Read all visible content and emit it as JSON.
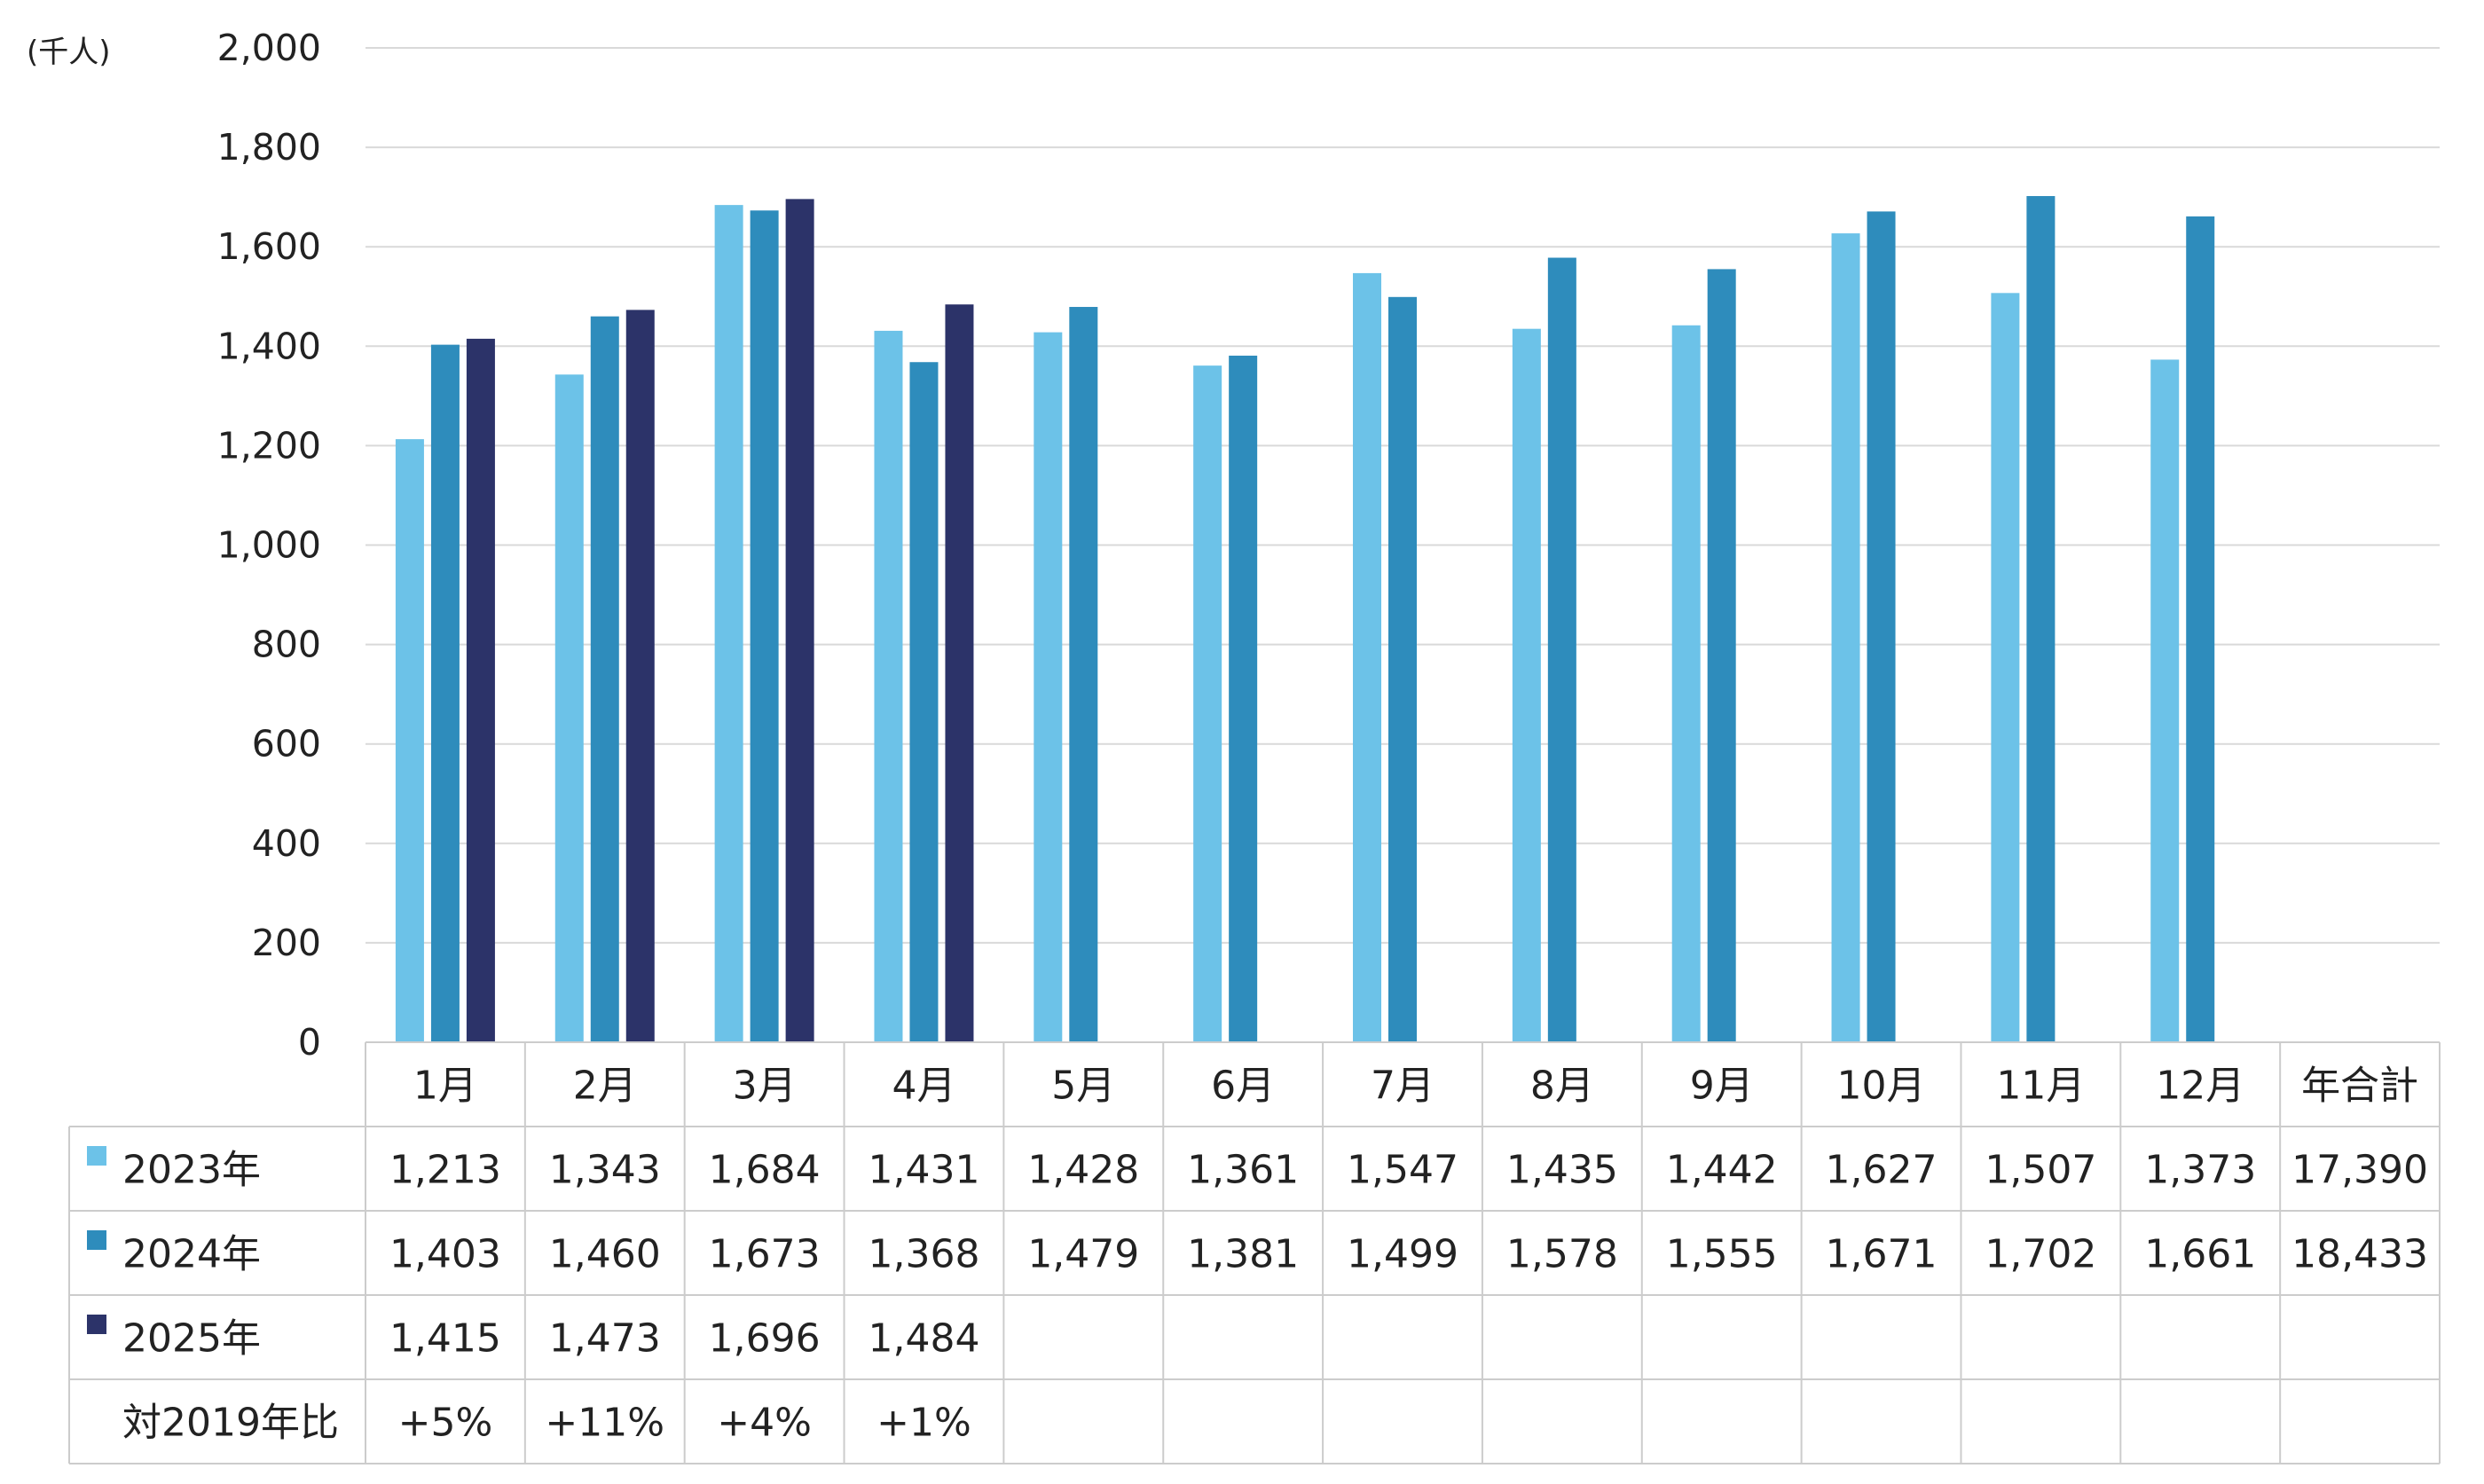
{
  "chart_data": {
    "type": "bar",
    "unit_label": "(千人)",
    "categories": [
      "1月",
      "2月",
      "3月",
      "4月",
      "5月",
      "6月",
      "7月",
      "8月",
      "9月",
      "10月",
      "11月",
      "12月"
    ],
    "ylim": [
      0,
      2000
    ],
    "yticks": [
      "0",
      "200",
      "400",
      "600",
      "800",
      "1,000",
      "1,200",
      "1,400",
      "1,600",
      "1,800",
      "2,000"
    ],
    "grid": true,
    "series": [
      {
        "name": "2023年",
        "color": "#6CC2E8",
        "values": [
          1213,
          1343,
          1684,
          1431,
          1428,
          1361,
          1547,
          1435,
          1442,
          1627,
          1507,
          1373
        ]
      },
      {
        "name": "2024年",
        "color": "#2E8CBC",
        "values": [
          1403,
          1460,
          1673,
          1368,
          1479,
          1381,
          1499,
          1578,
          1555,
          1671,
          1702,
          1661
        ]
      },
      {
        "name": "2025年",
        "color": "#2C3369",
        "values": [
          1415,
          1473,
          1696,
          1484,
          null,
          null,
          null,
          null,
          null,
          null,
          null,
          null
        ]
      }
    ],
    "table": {
      "total_header": "年合計",
      "rows": [
        {
          "label": "2023年",
          "cells": [
            "1,213",
            "1,343",
            "1,684",
            "1,431",
            "1,428",
            "1,361",
            "1,547",
            "1,435",
            "1,442",
            "1,627",
            "1,507",
            "1,373",
            "17,390"
          ]
        },
        {
          "label": "2024年",
          "cells": [
            "1,403",
            "1,460",
            "1,673",
            "1,368",
            "1,479",
            "1,381",
            "1,499",
            "1,578",
            "1,555",
            "1,671",
            "1,702",
            "1,661",
            "18,433"
          ]
        },
        {
          "label": "2025年",
          "cells": [
            "1,415",
            "1,473",
            "1,696",
            "1,484",
            "",
            "",
            "",
            "",
            "",
            "",
            "",
            "",
            ""
          ]
        },
        {
          "label": "対2019年比",
          "cells": [
            "+5%",
            "+11%",
            "+4%",
            "+1%",
            "",
            "",
            "",
            "",
            "",
            "",
            "",
            "",
            ""
          ]
        }
      ]
    }
  }
}
